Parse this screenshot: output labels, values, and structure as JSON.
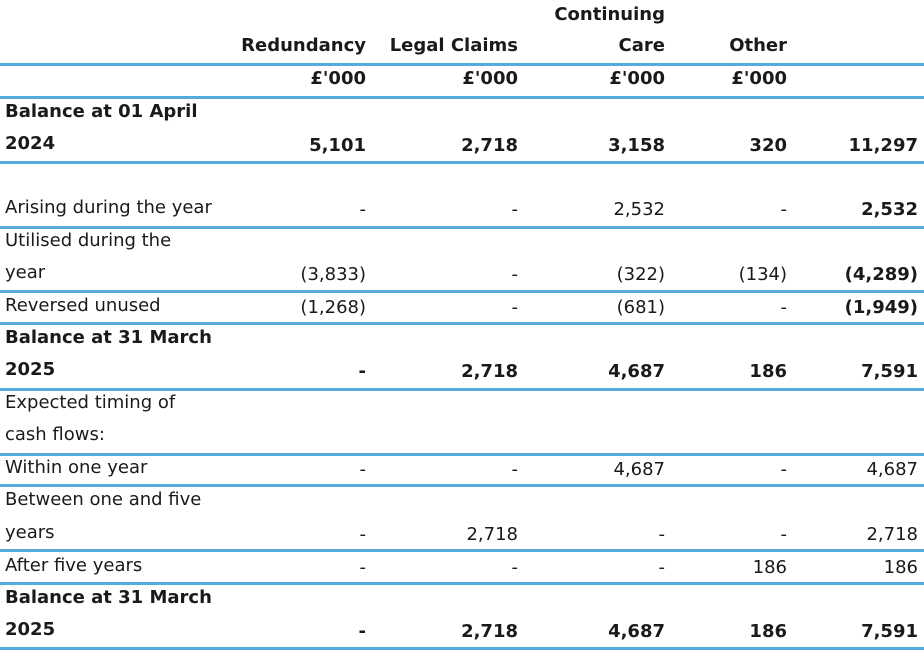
{
  "header": {
    "col1": "Redundancy",
    "col2": "Legal  Claims",
    "col3_line1": "Continuing",
    "col3_line2": "Care",
    "col4": "Other",
    "units": [
      "£'000",
      "£'000",
      "£'000",
      "£'000"
    ]
  },
  "rows": {
    "opening": {
      "label1": "Balance at 01 April",
      "label2": "2024",
      "v1": "5,101",
      "v2": "2,718",
      "v3": "3,158",
      "v4": "320",
      "v5": "11,297"
    },
    "arising": {
      "label": "Arising during the year",
      "v1": "-",
      "v2": "-",
      "v3": "2,532",
      "v4": "-",
      "v5": "2,532"
    },
    "utilised": {
      "label1": "Utilised during the",
      "label2": "year",
      "v1": "(3,833)",
      "v2": "-",
      "v3": "(322)",
      "v4": "(134)",
      "v5": "(4,289)"
    },
    "reversed": {
      "label": "Reversed unused",
      "v1": "(1,268)",
      "v2": "-",
      "v3": "(681)",
      "v4": "-",
      "v5": "(1,949)"
    },
    "closing1": {
      "label1": "Balance at 31 March",
      "label2": "2025",
      "v1": "-",
      "v2": "2,718",
      "v3": "4,687",
      "v4": "186",
      "v5": "7,591"
    },
    "timing": {
      "label1": "Expected timing of",
      "label2": "cash flows:"
    },
    "within": {
      "label": "Within one year",
      "v1": "-",
      "v2": "-",
      "v3": "4,687",
      "v4": "-",
      "v5": "4,687"
    },
    "between": {
      "label1": "Between one and five",
      "label2": "years",
      "v1": "-",
      "v2": "2,718",
      "v3": "-",
      "v4": "-",
      "v5": "2,718"
    },
    "after": {
      "label": "After five years",
      "v1": "-",
      "v2": "-",
      "v3": "-",
      "v4": "186",
      "v5": "186"
    },
    "closing2": {
      "label1": "Balance at 31 March",
      "label2": "2025",
      "v1": "-",
      "v2": "2,718",
      "v3": "4,687",
      "v4": "186",
      "v5": "7,591"
    }
  }
}
